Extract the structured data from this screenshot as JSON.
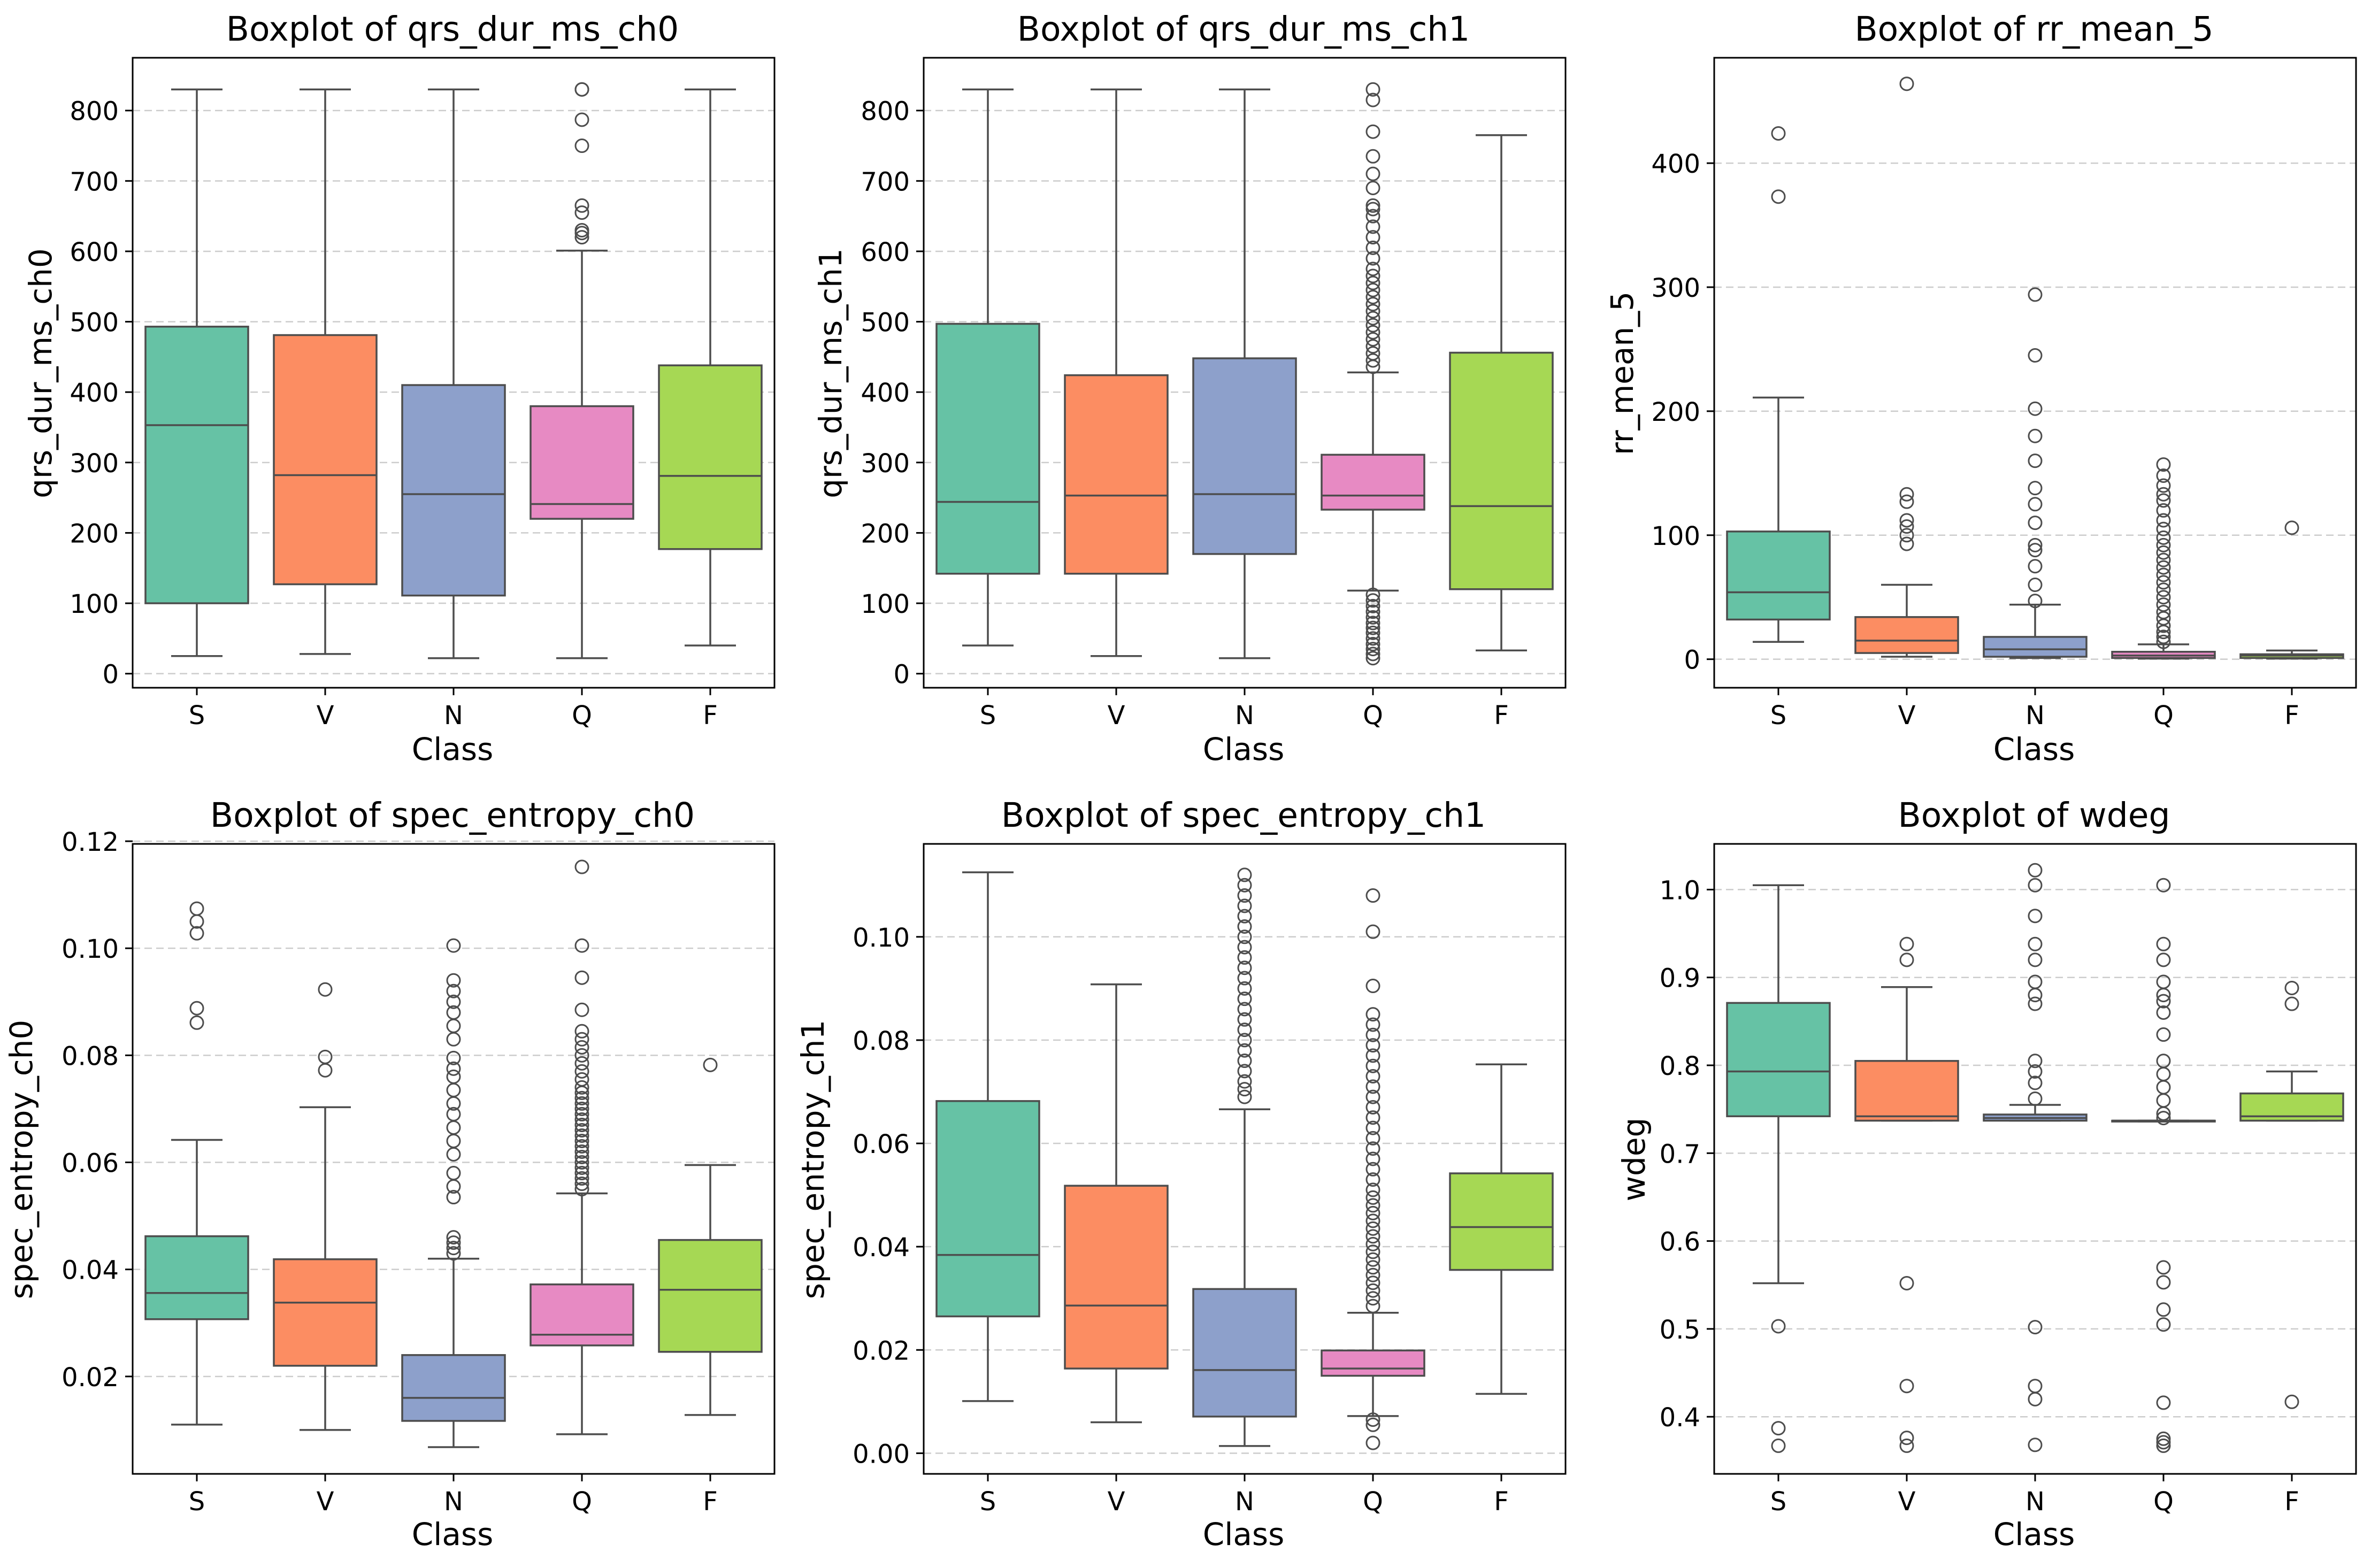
{
  "figure": {
    "categories": [
      "S",
      "V",
      "N",
      "Q",
      "F"
    ],
    "colors": [
      "#66c2a5",
      "#fc8d62",
      "#8da0cb",
      "#e78ac3",
      "#a6d854"
    ]
  },
  "chart_data": [
    {
      "type": "boxplot",
      "title": "Boxplot of qrs_dur_ms_ch0",
      "xlabel": "Class",
      "ylabel": "qrs_dur_ms_ch0",
      "ylim": [
        -20,
        875
      ],
      "yticks": [
        0,
        100,
        200,
        300,
        400,
        500,
        600,
        700,
        800
      ],
      "ytick_labels": [
        "0",
        "100",
        "200",
        "300",
        "400",
        "500",
        "600",
        "700",
        "800"
      ],
      "grid": "y-dashed",
      "boxes": [
        {
          "class": "S",
          "whislo": 25,
          "q1": 100,
          "med": 353,
          "q3": 493,
          "whishi": 830,
          "fliers": []
        },
        {
          "class": "V",
          "whislo": 28,
          "q1": 127,
          "med": 282,
          "q3": 481,
          "whishi": 830,
          "fliers": []
        },
        {
          "class": "N",
          "whislo": 22,
          "q1": 111,
          "med": 255,
          "q3": 410,
          "whishi": 830,
          "fliers": []
        },
        {
          "class": "Q",
          "whislo": 22,
          "q1": 220,
          "med": 241,
          "q3": 380,
          "whishi": 601,
          "fliers": [
            620,
            626,
            630,
            655,
            665,
            750,
            787,
            830,
            830
          ]
        },
        {
          "class": "F",
          "whislo": 40,
          "q1": 177,
          "med": 281,
          "q3": 438,
          "whishi": 830,
          "fliers": []
        }
      ]
    },
    {
      "type": "boxplot",
      "title": "Boxplot of qrs_dur_ms_ch1",
      "xlabel": "Class",
      "ylabel": "qrs_dur_ms_ch1",
      "ylim": [
        -20,
        875
      ],
      "yticks": [
        0,
        100,
        200,
        300,
        400,
        500,
        600,
        700,
        800
      ],
      "ytick_labels": [
        "0",
        "100",
        "200",
        "300",
        "400",
        "500",
        "600",
        "700",
        "800"
      ],
      "grid": "y-dashed",
      "boxes": [
        {
          "class": "S",
          "whislo": 40,
          "q1": 142,
          "med": 244,
          "q3": 497,
          "whishi": 830,
          "fliers": []
        },
        {
          "class": "V",
          "whislo": 25,
          "q1": 142,
          "med": 253,
          "q3": 424,
          "whishi": 830,
          "fliers": []
        },
        {
          "class": "N",
          "whislo": 22,
          "q1": 170,
          "med": 255,
          "q3": 448,
          "whishi": 830,
          "fliers": []
        },
        {
          "class": "Q",
          "whislo": 118,
          "q1": 233,
          "med": 253,
          "q3": 311,
          "whishi": 428,
          "fliers": [
            22,
            28,
            35,
            42,
            50,
            58,
            65,
            72,
            80,
            88,
            96,
            104,
            112,
            436,
            445,
            455,
            465,
            475,
            485,
            495,
            505,
            515,
            525,
            535,
            545,
            555,
            565,
            575,
            590,
            605,
            620,
            635,
            650,
            660,
            665,
            690,
            710,
            735,
            770,
            815,
            830
          ]
        },
        {
          "class": "F",
          "whislo": 33,
          "q1": 120,
          "med": 238,
          "q3": 456,
          "whishi": 765,
          "fliers": []
        }
      ]
    },
    {
      "type": "boxplot",
      "title": "Boxplot of rr_mean_5",
      "xlabel": "Class",
      "ylabel": "rr_mean_5",
      "ylim": [
        -23,
        485
      ],
      "yticks": [
        0,
        100,
        200,
        300,
        400
      ],
      "ytick_labels": [
        "0",
        "100",
        "200",
        "300",
        "400"
      ],
      "grid": "y-dashed",
      "boxes": [
        {
          "class": "S",
          "whislo": 14,
          "q1": 32,
          "med": 54,
          "q3": 103,
          "whishi": 211,
          "fliers": [
            373,
            424
          ]
        },
        {
          "class": "V",
          "whislo": 2,
          "q1": 5,
          "med": 15,
          "q3": 34,
          "whishi": 60,
          "fliers": [
            93,
            100,
            107,
            112,
            127,
            133,
            464
          ]
        },
        {
          "class": "N",
          "whislo": 1,
          "q1": 2,
          "med": 8,
          "q3": 18,
          "whishi": 44,
          "fliers": [
            47,
            60,
            75,
            88,
            92,
            110,
            125,
            138,
            160,
            180,
            202,
            245,
            294
          ]
        },
        {
          "class": "Q",
          "whislo": 0.5,
          "q1": 1,
          "med": 3,
          "q3": 6,
          "whishi": 12,
          "fliers": [
            14,
            18,
            22,
            27,
            33,
            38,
            44,
            50,
            56,
            62,
            68,
            74,
            80,
            86,
            92,
            98,
            105,
            112,
            120,
            128,
            133,
            140,
            148,
            157
          ]
        },
        {
          "class": "F",
          "whislo": 0.5,
          "q1": 1,
          "med": 3,
          "q3": 4,
          "whishi": 7,
          "fliers": [
            106
          ]
        }
      ]
    },
    {
      "type": "boxplot",
      "title": "Boxplot of spec_entropy_ch0",
      "xlabel": "Class",
      "ylabel": "spec_entropy_ch0",
      "ylim": [
        0.0018,
        0.1195
      ],
      "yticks": [
        0.02,
        0.04,
        0.06,
        0.08,
        0.1,
        0.12
      ],
      "ytick_labels": [
        "0.02",
        "0.04",
        "0.06",
        "0.08",
        "0.10",
        "0.12"
      ],
      "grid": "y-dashed",
      "boxes": [
        {
          "class": "S",
          "whislo": 0.011,
          "q1": 0.0307,
          "med": 0.0356,
          "q3": 0.0462,
          "whishi": 0.0642,
          "fliers": [
            0.0861,
            0.0888,
            0.1028,
            0.105,
            0.1074
          ]
        },
        {
          "class": "V",
          "whislo": 0.01,
          "q1": 0.022,
          "med": 0.0338,
          "q3": 0.0419,
          "whishi": 0.0703,
          "fliers": [
            0.0772,
            0.0797,
            0.0923
          ]
        },
        {
          "class": "N",
          "whislo": 0.0068,
          "q1": 0.0117,
          "med": 0.016,
          "q3": 0.024,
          "whishi": 0.042,
          "fliers": [
            0.043,
            0.044,
            0.045,
            0.046,
            0.0535,
            0.0555,
            0.058,
            0.0615,
            0.064,
            0.0665,
            0.069,
            0.071,
            0.0735,
            0.076,
            0.0775,
            0.0795,
            0.083,
            0.0855,
            0.088,
            0.09,
            0.092,
            0.094,
            0.1005
          ]
        },
        {
          "class": "Q",
          "whislo": 0.0092,
          "q1": 0.0258,
          "med": 0.0278,
          "q3": 0.0372,
          "whishi": 0.0542,
          "fliers": [
            0.055,
            0.056,
            0.057,
            0.058,
            0.059,
            0.06,
            0.061,
            0.062,
            0.063,
            0.064,
            0.065,
            0.066,
            0.067,
            0.068,
            0.069,
            0.07,
            0.071,
            0.072,
            0.073,
            0.074,
            0.0755,
            0.077,
            0.0785,
            0.08,
            0.0815,
            0.083,
            0.0845,
            0.0885,
            0.0945,
            0.1005,
            0.1152
          ]
        },
        {
          "class": "F",
          "whislo": 0.0128,
          "q1": 0.0246,
          "med": 0.0362,
          "q3": 0.0455,
          "whishi": 0.0595,
          "fliers": [
            0.0782
          ]
        }
      ]
    },
    {
      "type": "boxplot",
      "title": "Boxplot of spec_entropy_ch1",
      "xlabel": "Class",
      "ylabel": "spec_entropy_ch1",
      "ylim": [
        -0.004,
        0.118
      ],
      "yticks": [
        0.0,
        0.02,
        0.04,
        0.06,
        0.08,
        0.1
      ],
      "ytick_labels": [
        "0.00",
        "0.02",
        "0.04",
        "0.06",
        "0.08",
        "0.10"
      ],
      "grid": "y-dashed",
      "boxes": [
        {
          "class": "S",
          "whislo": 0.0101,
          "q1": 0.0265,
          "med": 0.0384,
          "q3": 0.0682,
          "whishi": 0.1125,
          "fliers": []
        },
        {
          "class": "V",
          "whislo": 0.006,
          "q1": 0.0164,
          "med": 0.0286,
          "q3": 0.0518,
          "whishi": 0.0908,
          "fliers": []
        },
        {
          "class": "N",
          "whislo": 0.0014,
          "q1": 0.0071,
          "med": 0.0161,
          "q3": 0.0318,
          "whishi": 0.0666,
          "fliers": [
            0.069,
            0.0705,
            0.072,
            0.074,
            0.076,
            0.078,
            0.08,
            0.082,
            0.084,
            0.086,
            0.088,
            0.09,
            0.092,
            0.094,
            0.096,
            0.098,
            0.1,
            0.102,
            0.104,
            0.106,
            0.108,
            0.11,
            0.112
          ]
        },
        {
          "class": "Q",
          "whislo": 0.0072,
          "q1": 0.015,
          "med": 0.0164,
          "q3": 0.0199,
          "whishi": 0.0272,
          "fliers": [
            0.002,
            0.0055,
            0.0065,
            0.0285,
            0.03,
            0.0315,
            0.033,
            0.0345,
            0.036,
            0.0375,
            0.039,
            0.0405,
            0.042,
            0.0435,
            0.045,
            0.0465,
            0.048,
            0.0495,
            0.051,
            0.053,
            0.055,
            0.057,
            0.059,
            0.061,
            0.063,
            0.065,
            0.067,
            0.069,
            0.071,
            0.073,
            0.075,
            0.077,
            0.079,
            0.081,
            0.083,
            0.085,
            0.0905,
            0.101,
            0.108
          ]
        },
        {
          "class": "F",
          "whislo": 0.0115,
          "q1": 0.0355,
          "med": 0.0438,
          "q3": 0.0542,
          "whishi": 0.0753,
          "fliers": []
        }
      ]
    },
    {
      "type": "boxplot",
      "title": "Boxplot of wdeg",
      "xlabel": "Class",
      "ylabel": "wdeg",
      "ylim": [
        0.335,
        1.052
      ],
      "yticks": [
        0.4,
        0.5,
        0.6,
        0.7,
        0.8,
        0.9,
        1.0
      ],
      "ytick_labels": [
        "0.4",
        "0.5",
        "0.6",
        "0.7",
        "0.8",
        "0.9",
        "1.0"
      ],
      "grid": "y-dashed",
      "boxes": [
        {
          "class": "S",
          "whislo": 0.552,
          "q1": 0.742,
          "med": 0.793,
          "q3": 0.871,
          "whishi": 1.005,
          "fliers": [
            0.367,
            0.387,
            0.503
          ]
        },
        {
          "class": "V",
          "whislo": 0.737,
          "q1": 0.737,
          "med": 0.742,
          "q3": 0.805,
          "whishi": 0.889,
          "fliers": [
            0.367,
            0.376,
            0.435,
            0.552,
            0.92,
            0.938
          ]
        },
        {
          "class": "N",
          "whislo": 0.737,
          "q1": 0.737,
          "med": 0.74,
          "q3": 0.744,
          "whishi": 0.755,
          "fliers": [
            0.368,
            0.42,
            0.435,
            0.502,
            0.762,
            0.78,
            0.793,
            0.805,
            0.87,
            0.88,
            0.895,
            0.92,
            0.938,
            0.97,
            1.005,
            1.022
          ]
        },
        {
          "class": "Q",
          "whislo": 0.736,
          "q1": 0.736,
          "med": 0.737,
          "q3": 0.737,
          "whishi": 0.737,
          "fliers": [
            0.367,
            0.371,
            0.375,
            0.416,
            0.505,
            0.522,
            0.553,
            0.57,
            0.74,
            0.745,
            0.76,
            0.775,
            0.79,
            0.805,
            0.835,
            0.86,
            0.873,
            0.88,
            0.895,
            0.92,
            0.938,
            1.005
          ]
        },
        {
          "class": "F",
          "whislo": 0.737,
          "q1": 0.737,
          "med": 0.742,
          "q3": 0.768,
          "whishi": 0.793,
          "fliers": [
            0.417,
            0.87,
            0.888
          ]
        }
      ]
    }
  ]
}
